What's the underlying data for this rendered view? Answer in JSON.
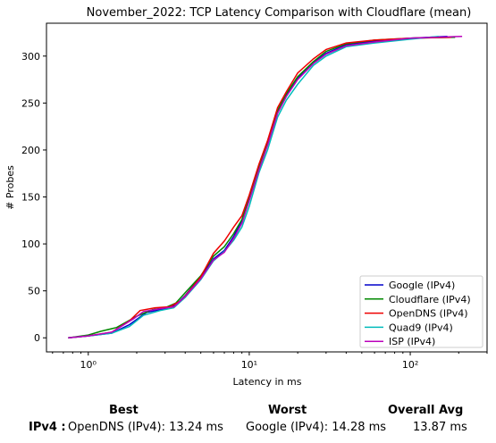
{
  "chart_data": {
    "type": "line",
    "title": "November_2022: TCP Latency Comparison with Cloudflare (mean)",
    "xlabel": "Latency in ms",
    "ylabel": "# Probes",
    "xscale": "log",
    "xlim": [
      0.55,
      300
    ],
    "ylim": [
      -15,
      335
    ],
    "x_ticks": [
      {
        "value": 1,
        "label": "10⁰"
      },
      {
        "value": 10,
        "label": "10¹"
      },
      {
        "value": 100,
        "label": "10²"
      }
    ],
    "y_ticks": [
      0,
      50,
      100,
      150,
      200,
      250,
      300
    ],
    "grid": false,
    "legend_position": "lower-right",
    "series": [
      {
        "name": "Google (IPv4)",
        "color": "#0000cc",
        "points": [
          [
            0.75,
            0
          ],
          [
            1.0,
            2
          ],
          [
            1.4,
            5
          ],
          [
            1.8,
            14
          ],
          [
            2.3,
            27
          ],
          [
            3.0,
            31
          ],
          [
            3.5,
            35
          ],
          [
            4.0,
            45
          ],
          [
            5.0,
            65
          ],
          [
            6.0,
            84
          ],
          [
            7.0,
            93
          ],
          [
            8.0,
            108
          ],
          [
            9.0,
            125
          ],
          [
            10.0,
            148
          ],
          [
            11.5,
            180
          ],
          [
            13.0,
            206
          ],
          [
            15.0,
            240
          ],
          [
            17.0,
            258
          ],
          [
            20.0,
            276
          ],
          [
            25.0,
            293
          ],
          [
            30.0,
            303
          ],
          [
            40.0,
            312
          ],
          [
            60.0,
            316
          ],
          [
            100.0,
            319
          ],
          [
            170.0,
            321
          ]
        ]
      },
      {
        "name": "Cloudflare (IPv4)",
        "color": "#008800",
        "points": [
          [
            0.75,
            0
          ],
          [
            1.0,
            3
          ],
          [
            1.2,
            7
          ],
          [
            1.5,
            11
          ],
          [
            2.0,
            23
          ],
          [
            2.5,
            30
          ],
          [
            3.0,
            32
          ],
          [
            3.5,
            37
          ],
          [
            4.0,
            48
          ],
          [
            5.0,
            66
          ],
          [
            6.0,
            87
          ],
          [
            7.0,
            97
          ],
          [
            8.0,
            111
          ],
          [
            9.0,
            126
          ],
          [
            10.0,
            150
          ],
          [
            11.5,
            182
          ],
          [
            13.0,
            207
          ],
          [
            15.0,
            242
          ],
          [
            17.0,
            260
          ],
          [
            20.0,
            278
          ],
          [
            25.0,
            294
          ],
          [
            30.0,
            305
          ],
          [
            40.0,
            313
          ],
          [
            60.0,
            317
          ],
          [
            100.0,
            319
          ],
          [
            190.0,
            320
          ]
        ]
      },
      {
        "name": "OpenDNS (IPv4)",
        "color": "#ee0000",
        "points": [
          [
            0.75,
            0
          ],
          [
            1.0,
            2
          ],
          [
            1.4,
            6
          ],
          [
            1.8,
            18
          ],
          [
            2.1,
            29
          ],
          [
            2.6,
            32
          ],
          [
            3.2,
            33
          ],
          [
            3.8,
            40
          ],
          [
            4.5,
            55
          ],
          [
            5.0,
            65
          ],
          [
            6.0,
            90
          ],
          [
            7.0,
            103
          ],
          [
            8.0,
            118
          ],
          [
            9.0,
            130
          ],
          [
            10.0,
            152
          ],
          [
            11.5,
            185
          ],
          [
            13.0,
            210
          ],
          [
            15.0,
            245
          ],
          [
            17.0,
            262
          ],
          [
            20.0,
            282
          ],
          [
            25.0,
            297
          ],
          [
            30.0,
            307
          ],
          [
            40.0,
            314
          ],
          [
            60.0,
            317
          ],
          [
            100.0,
            319
          ],
          [
            180.0,
            320
          ]
        ]
      },
      {
        "name": "Quad9 (IPv4)",
        "color": "#00bbbb",
        "points": [
          [
            0.75,
            0
          ],
          [
            1.0,
            2
          ],
          [
            1.4,
            5
          ],
          [
            1.8,
            12
          ],
          [
            2.2,
            24
          ],
          [
            2.8,
            29
          ],
          [
            3.4,
            32
          ],
          [
            4.0,
            43
          ],
          [
            5.0,
            62
          ],
          [
            6.0,
            82
          ],
          [
            7.0,
            92
          ],
          [
            8.0,
            104
          ],
          [
            9.0,
            118
          ],
          [
            10.0,
            140
          ],
          [
            11.5,
            176
          ],
          [
            13.0,
            200
          ],
          [
            15.0,
            235
          ],
          [
            17.0,
            253
          ],
          [
            20.0,
            270
          ],
          [
            25.0,
            290
          ],
          [
            30.0,
            300
          ],
          [
            40.0,
            310
          ],
          [
            60.0,
            314
          ],
          [
            100.0,
            318
          ],
          [
            150.0,
            321
          ]
        ]
      },
      {
        "name": "ISP (IPv4)",
        "color": "#bb00bb",
        "points": [
          [
            0.75,
            0
          ],
          [
            1.0,
            2
          ],
          [
            1.4,
            6
          ],
          [
            1.9,
            20
          ],
          [
            2.2,
            28
          ],
          [
            2.8,
            31
          ],
          [
            3.4,
            33
          ],
          [
            4.0,
            44
          ],
          [
            5.0,
            63
          ],
          [
            6.0,
            83
          ],
          [
            7.0,
            91
          ],
          [
            8.0,
            106
          ],
          [
            9.0,
            122
          ],
          [
            10.0,
            146
          ],
          [
            11.5,
            179
          ],
          [
            13.0,
            205
          ],
          [
            15.0,
            239
          ],
          [
            17.0,
            257
          ],
          [
            20.0,
            275
          ],
          [
            25.0,
            292
          ],
          [
            30.0,
            302
          ],
          [
            40.0,
            311
          ],
          [
            60.0,
            315
          ],
          [
            100.0,
            319
          ],
          [
            210.0,
            321
          ]
        ]
      }
    ]
  },
  "summary": {
    "best_header": "Best",
    "worst_header": "Worst",
    "avg_header": "Overall Avg",
    "row_label": "IPv4 :",
    "best_value": "OpenDNS (IPv4): 13.24 ms",
    "worst_value": "Google (IPv4): 14.28 ms",
    "avg_value": "13.87 ms"
  }
}
